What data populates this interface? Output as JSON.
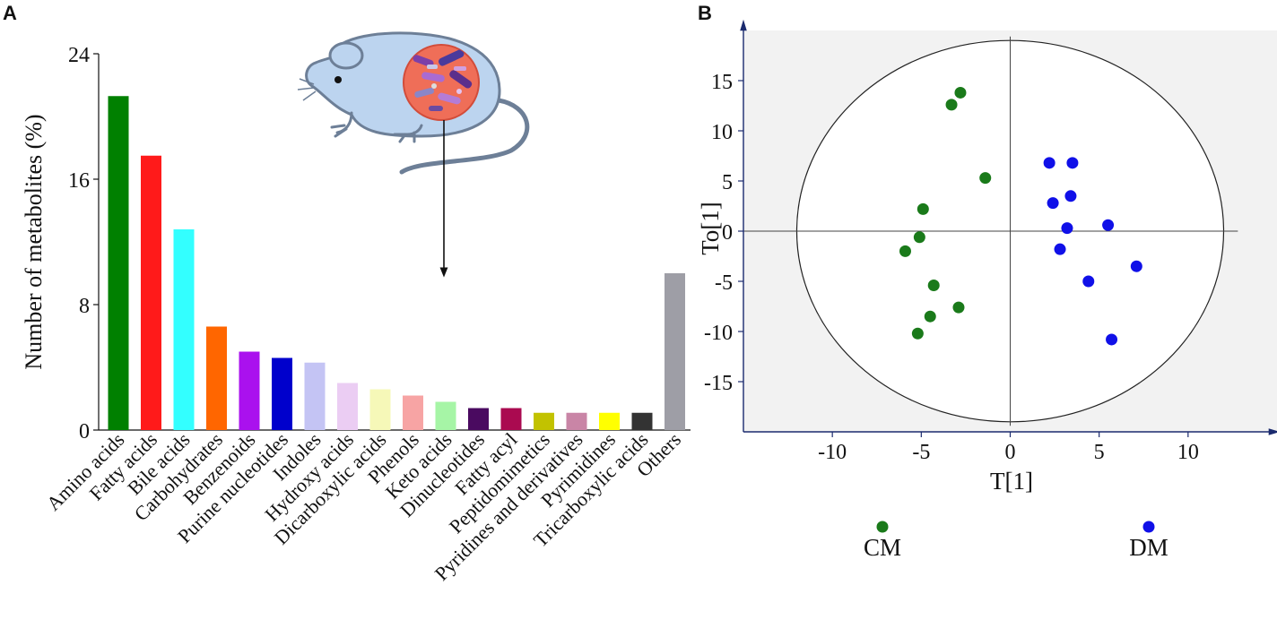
{
  "panels": {
    "a_label": "A",
    "b_label": "B"
  },
  "chart_data": [
    {
      "type": "bar",
      "panel": "A",
      "title": "",
      "xlabel": "",
      "ylabel": "Number of metabolites (%)",
      "ylim": [
        0,
        24
      ],
      "yticks": [
        0,
        8,
        16,
        24
      ],
      "grid": false,
      "categories": [
        "Amino acids",
        "Fatty acids",
        "Bile acids",
        "Carbohydrates",
        "Benzenoids",
        "Purine nucleotides",
        "Indoles",
        "Hydroxy acids",
        "Dicarboxylic acids",
        "Phenols",
        "Keto acids",
        "Dinucleotides",
        "Fatty acyl",
        "Peptidomimetics",
        "Pyridines and derivatives",
        "Pyrimidines",
        "Tricarboxylic acids",
        "Others"
      ],
      "values": [
        21.3,
        17.5,
        12.8,
        6.6,
        5.0,
        4.6,
        4.3,
        3.0,
        2.6,
        2.2,
        1.8,
        1.4,
        1.4,
        1.1,
        1.1,
        1.1,
        1.1,
        10.0
      ],
      "colors": [
        "#008000",
        "#ff1a1a",
        "#33ffff",
        "#ff6600",
        "#aa11ee",
        "#0000cc",
        "#c4c4f4",
        "#ebcdf3",
        "#f6f8b8",
        "#f7a4a4",
        "#a6f5a6",
        "#4a0a60",
        "#aa0a50",
        "#c2c200",
        "#c985a6",
        "#ffff00",
        "#333333",
        "#9e9ea6"
      ]
    },
    {
      "type": "scatter",
      "panel": "B",
      "title": "",
      "xlabel": "T[1]",
      "ylabel": "To[1]",
      "xlim": [
        -15,
        15
      ],
      "ylim": [
        -20,
        20
      ],
      "xticks": [
        -10,
        -5,
        0,
        5,
        10
      ],
      "yticks": [
        -15,
        -10,
        -5,
        0,
        5,
        10,
        15
      ],
      "ellipse": {
        "rx": 12.0,
        "ry": 19.0
      },
      "legend_position": "bottom",
      "series": [
        {
          "name": "CM",
          "color": "#1a7a1a",
          "points": [
            [
              -2.8,
              13.8
            ],
            [
              -3.3,
              12.6
            ],
            [
              -1.4,
              5.3
            ],
            [
              -4.9,
              2.2
            ],
            [
              -5.1,
              -0.6
            ],
            [
              -5.9,
              -2.0
            ],
            [
              -4.3,
              -5.4
            ],
            [
              -2.9,
              -7.6
            ],
            [
              -4.5,
              -8.5
            ],
            [
              -5.2,
              -10.2
            ]
          ]
        },
        {
          "name": "DM",
          "color": "#1010e8",
          "points": [
            [
              2.2,
              6.8
            ],
            [
              3.5,
              6.8
            ],
            [
              3.4,
              3.5
            ],
            [
              2.4,
              2.8
            ],
            [
              3.2,
              0.3
            ],
            [
              5.5,
              0.6
            ],
            [
              2.8,
              -1.8
            ],
            [
              7.1,
              -3.5
            ],
            [
              4.4,
              -5.0
            ],
            [
              5.7,
              -10.8
            ]
          ]
        }
      ]
    }
  ]
}
